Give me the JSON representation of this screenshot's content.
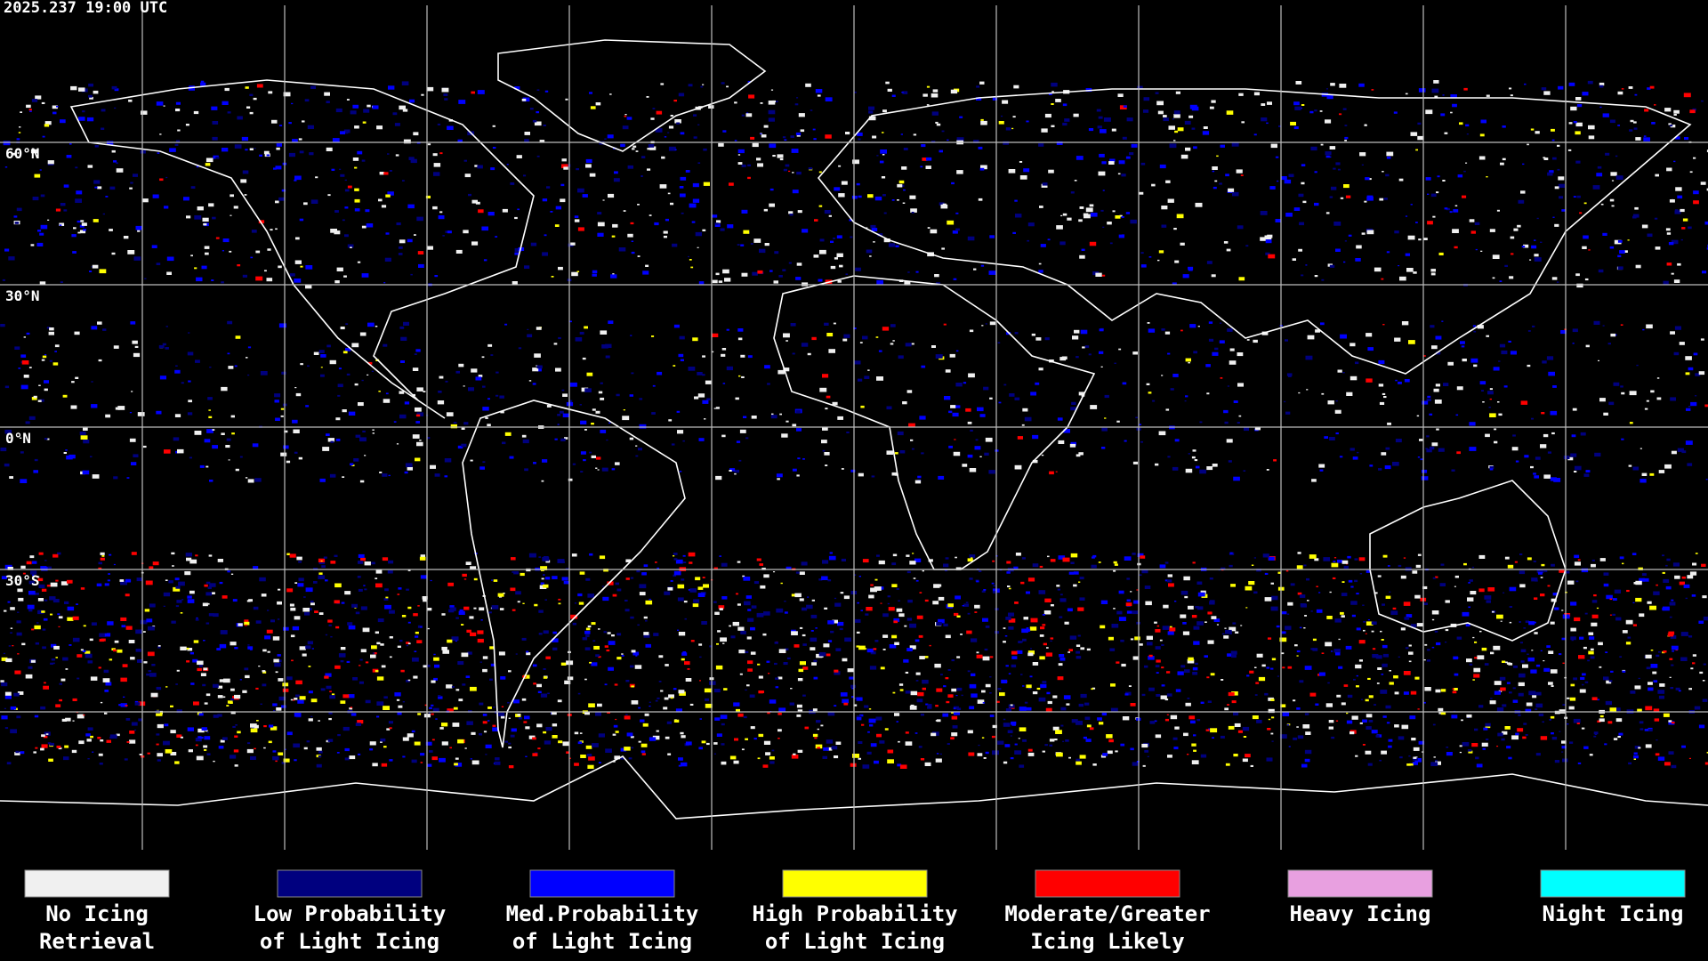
{
  "header": {
    "timestamp": "2025.237 19:00 UTC"
  },
  "map": {
    "latitude_labels": [
      "60°N",
      "30°N",
      "0°N",
      "30°S"
    ]
  },
  "legend": {
    "items": [
      {
        "lines": [
          "No Icing",
          "Retrieval"
        ],
        "color": "#f0f0f0"
      },
      {
        "lines": [
          "Low Probability",
          "of Light Icing"
        ],
        "color": "#00007f"
      },
      {
        "lines": [
          "Med.Probability",
          "of Light Icing"
        ],
        "color": "#0000ff"
      },
      {
        "lines": [
          "High Probability",
          "of Light Icing"
        ],
        "color": "#ffff00"
      },
      {
        "lines": [
          "Moderate/Greater",
          "Icing Likely"
        ],
        "color": "#ff0000"
      },
      {
        "lines": [
          "Heavy Icing"
        ],
        "color": "#e8a0e0"
      },
      {
        "lines": [
          "Night Icing"
        ],
        "color": "#00ffff"
      }
    ]
  }
}
